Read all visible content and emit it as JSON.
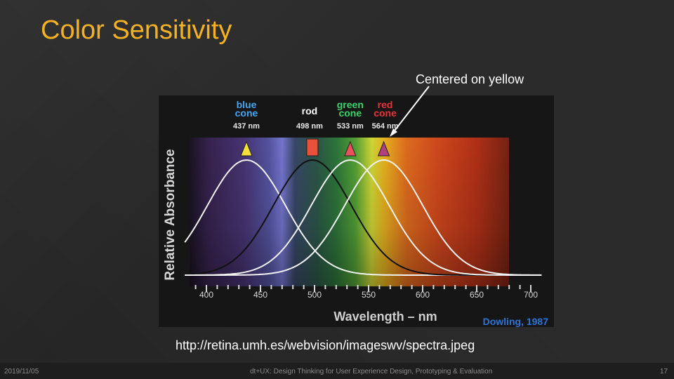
{
  "slide": {
    "title": "Color Sensitivity",
    "callout": "Centered on yellow",
    "url": "http://retina.umh.es/webvision/imageswv/spectra.jpeg",
    "footer": {
      "date": "2019/11/05",
      "text": "dt+UX: Design Thinking for User Experience Design, Prototyping & Evaluation",
      "page": "17"
    }
  },
  "colors": {
    "title": "#f4b223",
    "blue_label": "#46a6f0",
    "green_label": "#39d46a",
    "red_label": "#e8323c",
    "credit": "#2e74d6"
  },
  "chart_data": {
    "type": "line",
    "ylabel": "Relative Absorbance",
    "xlabel": "Wavelength – nm",
    "xlim": [
      380,
      710
    ],
    "x_ticks": [
      "400",
      "450",
      "500",
      "550",
      "600",
      "650",
      "700"
    ],
    "credit": "Dowling, 1987",
    "series": [
      {
        "name": "blue cone",
        "peak_label": "437 nm",
        "peak": 437
      },
      {
        "name": "rod",
        "peak_label": "498 nm",
        "peak": 498
      },
      {
        "name": "green cone",
        "peak_label": "533 nm",
        "peak": 533
      },
      {
        "name": "red cone",
        "peak_label": "564 nm",
        "peak": 564
      }
    ],
    "labels": {
      "blue": [
        "blue",
        "cone"
      ],
      "rod": [
        "rod"
      ],
      "green": [
        "green",
        "cone"
      ],
      "red": [
        "red",
        "cone"
      ]
    }
  }
}
